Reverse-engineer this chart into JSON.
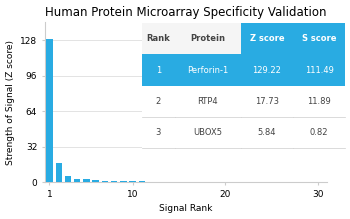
{
  "title": "Human Protein Microarray Specificity Validation",
  "xlabel": "Signal Rank",
  "ylabel": "Strength of Signal (Z score)",
  "bar_color": "#29abe2",
  "ylim": [
    0,
    144
  ],
  "yticks": [
    0,
    32,
    64,
    96,
    128
  ],
  "xlim": [
    0.5,
    31
  ],
  "xticks": [
    1,
    10,
    20,
    30
  ],
  "z_scores": [
    129.22,
    17.73,
    5.84,
    3.2,
    2.5,
    1.9,
    1.5,
    1.2,
    1.0,
    0.85,
    0.75,
    0.65,
    0.6,
    0.55,
    0.5,
    0.47,
    0.44,
    0.41,
    0.39,
    0.37,
    0.35,
    0.33,
    0.31,
    0.29,
    0.27,
    0.25,
    0.23,
    0.21,
    0.19,
    0.17
  ],
  "table_data": [
    [
      "Rank",
      "Protein",
      "Z score",
      "S score"
    ],
    [
      "1",
      "Perforin-1",
      "129.22",
      "111.49"
    ],
    [
      "2",
      "RTP4",
      "17.73",
      "11.89"
    ],
    [
      "3",
      "UBOX5",
      "5.84",
      "0.82"
    ]
  ],
  "table_header_bg_blue": "#29abe2",
  "table_header_bg_white": "#f5f5f5",
  "table_row1_bg": "#29abe2",
  "title_fontsize": 8.5,
  "axis_label_fontsize": 6.5,
  "tick_fontsize": 6.5,
  "table_fontsize": 6.0,
  "grid_color": "#d8d8d8",
  "spine_color": "#cccccc"
}
